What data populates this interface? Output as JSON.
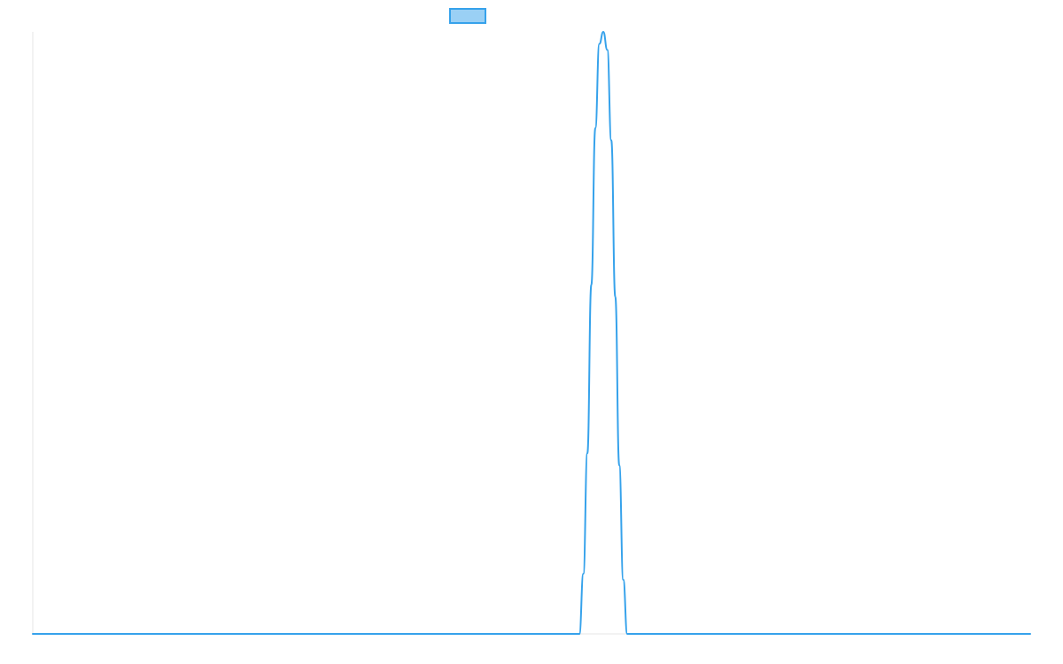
{
  "chart_data": {
    "type": "line",
    "title": "",
    "xlabel": "",
    "ylabel": "",
    "xlim": [
      0,
      1000
    ],
    "ylim": [
      0,
      1
    ],
    "grid": false,
    "legend": "top",
    "series": [
      {
        "color": "#36a2eb",
        "fill": "#9ad0f5",
        "x": [
          0,
          548,
          552,
          556,
          560,
          564,
          568,
          572,
          576,
          580,
          584,
          588,
          592,
          596,
          1000
        ],
        "values": [
          0,
          0,
          0.1,
          0.3,
          0.58,
          0.84,
          0.98,
          1.0,
          0.97,
          0.82,
          0.56,
          0.28,
          0.09,
          0,
          0
        ]
      }
    ]
  }
}
